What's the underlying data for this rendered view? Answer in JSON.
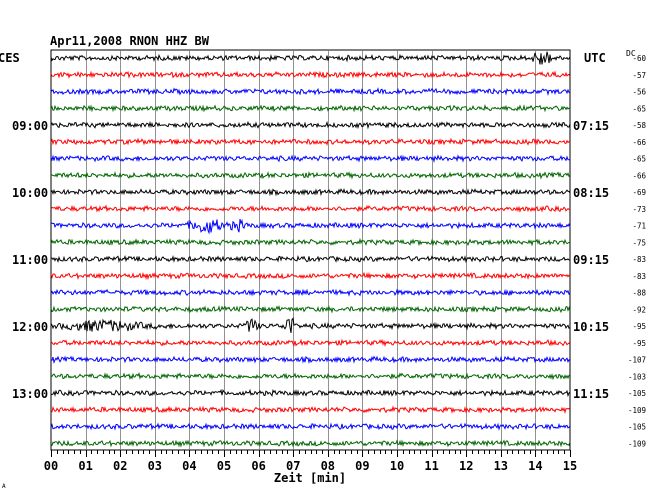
{
  "chart_data": {
    "type": "line",
    "title": "Apr11,2008   RNON HHZ BW",
    "left_timezone": "CES",
    "right_timezone": "UTC",
    "dc_label": "DC",
    "xlabel": "Zeit [min]",
    "x_ticks": [
      "00",
      "01",
      "02",
      "03",
      "04",
      "05",
      "06",
      "07",
      "08",
      "09",
      "10",
      "11",
      "12",
      "13",
      "14",
      "15"
    ],
    "xlim": [
      0,
      15
    ],
    "grid": true,
    "trace_colors": [
      "#000000",
      "#ff0000",
      "#0000ff",
      "#006400"
    ],
    "hour_labels_left": [
      {
        "row": 4,
        "label": "09:00"
      },
      {
        "row": 8,
        "label": "10:00"
      },
      {
        "row": 12,
        "label": "11:00"
      },
      {
        "row": 16,
        "label": "12:00"
      },
      {
        "row": 20,
        "label": "13:00"
      }
    ],
    "hour_labels_right": [
      {
        "row": 4,
        "label": "07:15"
      },
      {
        "row": 8,
        "label": "08:15"
      },
      {
        "row": 12,
        "label": "09:15"
      },
      {
        "row": 16,
        "label": "10:15"
      },
      {
        "row": 20,
        "label": "11:15"
      }
    ],
    "dc_offsets": [
      "-60",
      "-57",
      "-56",
      "-65",
      "-58",
      "-66",
      "-65",
      "-66",
      "-69",
      "-73",
      "-71",
      "-75",
      "-83",
      "-83",
      "-88",
      "-92",
      "-95",
      "-95",
      "-107",
      "-103",
      "-105",
      "-109",
      "-105",
      "-109"
    ],
    "events": [
      {
        "row": 0,
        "minute": 14.2,
        "amplitude": 2.2,
        "width_min": 0.5
      },
      {
        "row": 10,
        "minute": 4.5,
        "amplitude": 2.0,
        "width_min": 0.8
      },
      {
        "row": 10,
        "minute": 5.4,
        "amplitude": 1.3,
        "width_min": 0.4
      },
      {
        "row": 16,
        "minute": 1.5,
        "amplitude": 1.3,
        "width_min": 2.0
      },
      {
        "row": 16,
        "minute": 5.8,
        "amplitude": 2.0,
        "width_min": 0.3
      },
      {
        "row": 16,
        "minute": 6.9,
        "amplitude": 3.0,
        "width_min": 0.25
      }
    ]
  },
  "footer_mark": "A"
}
